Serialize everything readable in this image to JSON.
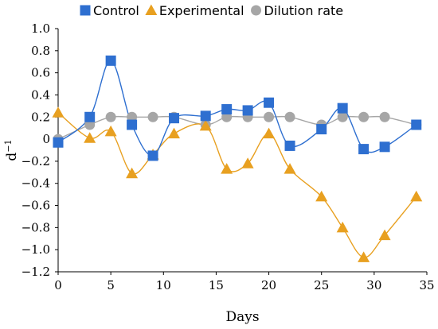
{
  "chart_data": {
    "type": "line",
    "xlabel": "Days",
    "ylabel_base": "d",
    "ylabel_sup": "−1",
    "xlim": [
      0,
      35
    ],
    "ylim": [
      -1.2,
      1.0
    ],
    "x_ticks": [
      0,
      5,
      10,
      15,
      20,
      25,
      30,
      35
    ],
    "x_tick_labels": [
      "0",
      "5",
      "10",
      "15",
      "20",
      "25",
      "30",
      "35"
    ],
    "y_ticks": [
      1.0,
      0.8,
      0.6,
      0.4,
      0.2,
      0,
      -0.2,
      -0.4,
      -0.6,
      -0.8,
      -1.0,
      -1.2
    ],
    "y_tick_labels": [
      "1.0",
      "0.8",
      "0.6",
      "0.4",
      "0.2",
      "0",
      "−0.2",
      "−0.4",
      "−0.6",
      "−0.8",
      "−1.0",
      "−1.2"
    ],
    "grid": false,
    "legend_position": "top",
    "series": [
      {
        "name": "Control",
        "marker": "square",
        "color": "#2E6FD0",
        "x": [
          0,
          3,
          5,
          7,
          9,
          11,
          14,
          16,
          18,
          20,
          22,
          25,
          27,
          29,
          31,
          34
        ],
        "y": [
          -0.03,
          0.2,
          0.71,
          0.13,
          -0.15,
          0.19,
          0.21,
          0.27,
          0.26,
          0.33,
          -0.06,
          0.09,
          0.28,
          -0.09,
          -0.07,
          0.13
        ]
      },
      {
        "name": "Experimental",
        "marker": "triangle",
        "color": "#E8A020",
        "x": [
          0,
          3,
          5,
          7,
          9,
          11,
          14,
          16,
          18,
          20,
          22,
          25,
          27,
          29,
          31,
          34
        ],
        "y": [
          0.24,
          0.01,
          0.07,
          -0.31,
          -0.14,
          0.05,
          0.12,
          -0.27,
          -0.22,
          0.05,
          -0.27,
          -0.52,
          -0.8,
          -1.07,
          -0.87,
          -0.52
        ]
      },
      {
        "name": "Dilution rate",
        "marker": "circle",
        "color": "#A6A6A6",
        "x": [
          0,
          3,
          5,
          7,
          9,
          11,
          14,
          16,
          18,
          20,
          22,
          25,
          27,
          29,
          31,
          34
        ],
        "y": [
          0,
          0.13,
          0.2,
          0.2,
          0.2,
          0.2,
          0.13,
          0.2,
          0.2,
          0.2,
          0.2,
          0.13,
          0.2,
          0.2,
          0.2,
          0.13
        ]
      }
    ]
  }
}
